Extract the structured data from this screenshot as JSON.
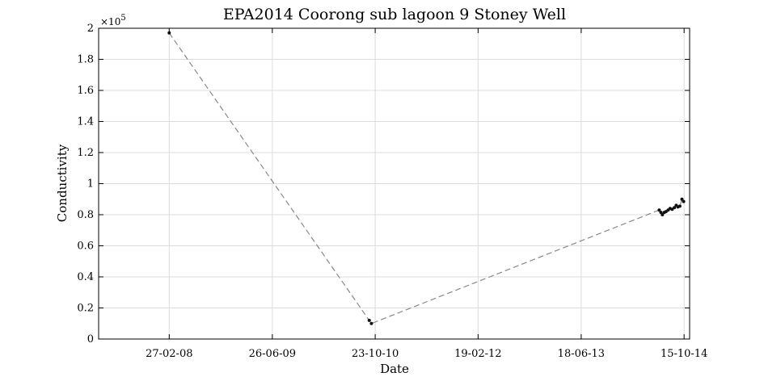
{
  "chart_data": {
    "type": "scatter",
    "title": "EPA2014 Coorong sub lagoon 9 Stoney Well",
    "xlabel": "Date",
    "ylabel": "Conductivity",
    "y_exponent_label": "×10",
    "y_exponent_power": "5",
    "x_range": [
      "2007-04-01",
      "2014-11-10"
    ],
    "ylim": [
      0,
      2
    ],
    "y_ticks": [
      0,
      0.2,
      0.4,
      0.6,
      0.8,
      1,
      1.2,
      1.4,
      1.6,
      1.8,
      2
    ],
    "y_tick_labels": [
      "0",
      "0.2",
      "0.4",
      "0.6",
      "0.8",
      "1",
      "1.2",
      "1.4",
      "1.6",
      "1.8",
      "2"
    ],
    "x_ticks": [
      "2008-02-27",
      "2009-06-26",
      "2010-10-23",
      "2012-02-19",
      "2013-06-18",
      "2014-10-15"
    ],
    "x_tick_labels": [
      "27-02-08",
      "26-06-09",
      "23-10-10",
      "19-02-12",
      "18-06-13",
      "15-10-14"
    ],
    "grid": true,
    "line_style": "dashed",
    "line_color": "#888888",
    "marker_color": "#111111",
    "series": [
      {
        "x": [
          "2008-02-27",
          "2010-09-25",
          "2010-10-05",
          "2014-06-20",
          "2014-06-28",
          "2014-07-05",
          "2014-07-14",
          "2014-07-22",
          "2014-08-01",
          "2014-08-10",
          "2014-08-20",
          "2014-08-30",
          "2014-09-08",
          "2014-09-16",
          "2014-09-25",
          "2014-10-05",
          "2014-10-13"
        ],
        "y": [
          1.97,
          0.12,
          0.1,
          0.83,
          0.815,
          0.8,
          0.815,
          0.82,
          0.83,
          0.84,
          0.835,
          0.845,
          0.86,
          0.85,
          0.855,
          0.9,
          0.885
        ]
      }
    ]
  }
}
